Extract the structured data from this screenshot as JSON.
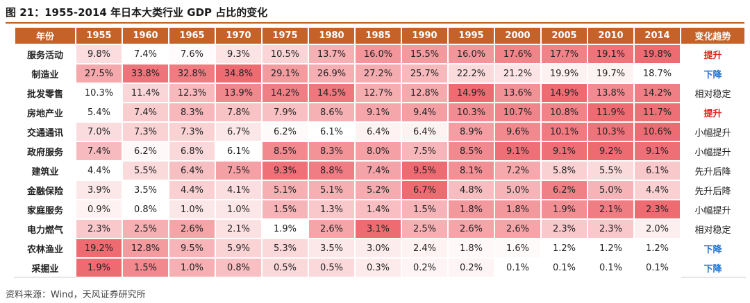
{
  "title": "图 21：1955-2014 年日本大类行业 GDP 占比的变化",
  "source": "资料来源：Wind，天风证券研究所",
  "colors": {
    "header_bg": "#c4622a",
    "heat_high": "#ee6b72",
    "heat_low": "#ffffff",
    "up": "#e0201a",
    "down": "#1a6fd1"
  },
  "chart_data": {
    "type": "table",
    "header_row_label": "年份",
    "trend_header": "变化趋势",
    "years": [
      "1955",
      "1960",
      "1965",
      "1970",
      "1975",
      "1980",
      "1985",
      "1990",
      "1995",
      "2000",
      "2005",
      "2010",
      "2014"
    ],
    "rows": [
      {
        "industry": "服务活动",
        "values": [
          "9.8%",
          "7.4%",
          "7.6%",
          "9.3%",
          "10.5%",
          "13.7%",
          "16.0%",
          "15.5%",
          "16.0%",
          "17.6%",
          "17.7%",
          "19.1%",
          "19.8%"
        ],
        "trend": "提升",
        "trend_type": "up"
      },
      {
        "industry": "制造业",
        "values": [
          "27.5%",
          "33.8%",
          "32.8%",
          "34.8%",
          "29.1%",
          "26.9%",
          "27.2%",
          "25.7%",
          "22.2%",
          "21.2%",
          "19.9%",
          "19.7%",
          "18.7%"
        ],
        "trend": "下降",
        "trend_type": "down"
      },
      {
        "industry": "批发零售",
        "values": [
          "10.3%",
          "11.4%",
          "12.3%",
          "13.9%",
          "14.2%",
          "14.5%",
          "12.7%",
          "12.8%",
          "14.9%",
          "13.6%",
          "14.9%",
          "13.8%",
          "14.2%"
        ],
        "trend": "相对稳定",
        "trend_type": "flat"
      },
      {
        "industry": "房地产业",
        "values": [
          "5.4%",
          "7.4%",
          "8.3%",
          "7.8%",
          "7.9%",
          "8.6%",
          "9.1%",
          "9.4%",
          "10.3%",
          "10.7%",
          "10.8%",
          "11.9%",
          "11.7%"
        ],
        "trend": "提升",
        "trend_type": "up"
      },
      {
        "industry": "交通通讯",
        "values": [
          "7.0%",
          "7.3%",
          "7.3%",
          "6.7%",
          "6.2%",
          "6.1%",
          "6.4%",
          "6.4%",
          "8.9%",
          "9.6%",
          "10.1%",
          "10.3%",
          "10.6%"
        ],
        "trend": "小幅提升",
        "trend_type": "flat"
      },
      {
        "industry": "政府服务",
        "values": [
          "7.4%",
          "6.2%",
          "6.8%",
          "6.1%",
          "8.5%",
          "8.3%",
          "8.0%",
          "7.5%",
          "8.5%",
          "9.1%",
          "9.1%",
          "9.2%",
          "9.1%"
        ],
        "trend": "小幅提升",
        "trend_type": "flat"
      },
      {
        "industry": "建筑业",
        "values": [
          "4.4%",
          "5.5%",
          "6.4%",
          "7.5%",
          "9.3%",
          "8.8%",
          "7.4%",
          "9.5%",
          "8.1%",
          "7.2%",
          "5.8%",
          "5.5%",
          "6.1%"
        ],
        "trend": "先升后降",
        "trend_type": "flat"
      },
      {
        "industry": "金融保险",
        "values": [
          "3.9%",
          "3.5%",
          "4.4%",
          "4.1%",
          "5.1%",
          "5.1%",
          "5.2%",
          "6.7%",
          "4.8%",
          "5.0%",
          "6.2%",
          "5.0%",
          "4.4%"
        ],
        "trend": "先升后降",
        "trend_type": "flat"
      },
      {
        "industry": "家庭服务",
        "values": [
          "0.9%",
          "0.8%",
          "1.0%",
          "1.0%",
          "1.5%",
          "1.3%",
          "1.4%",
          "1.5%",
          "1.8%",
          "1.8%",
          "1.9%",
          "2.1%",
          "2.3%"
        ],
        "trend": "小幅提升",
        "trend_type": "flat"
      },
      {
        "industry": "电力燃气",
        "values": [
          "2.3%",
          "2.5%",
          "2.6%",
          "2.1%",
          "1.9%",
          "2.6%",
          "3.1%",
          "2.5%",
          "2.6%",
          "2.6%",
          "2.3%",
          "2.3%",
          "2.0%"
        ],
        "trend": "相对稳定",
        "trend_type": "flat"
      },
      {
        "industry": "农林渔业",
        "values": [
          "19.2%",
          "12.8%",
          "9.5%",
          "5.9%",
          "5.3%",
          "3.5%",
          "3.0%",
          "2.4%",
          "1.8%",
          "1.6%",
          "1.2%",
          "1.2%",
          "1.2%"
        ],
        "trend": "下降",
        "trend_type": "down"
      },
      {
        "industry": "采掘业",
        "values": [
          "1.9%",
          "1.5%",
          "1.0%",
          "0.8%",
          "0.5%",
          "0.5%",
          "0.3%",
          "0.2%",
          "0.2%",
          "0.1%",
          "0.1%",
          "0.1%",
          "0.1%"
        ],
        "trend": "下降",
        "trend_type": "down"
      }
    ]
  }
}
